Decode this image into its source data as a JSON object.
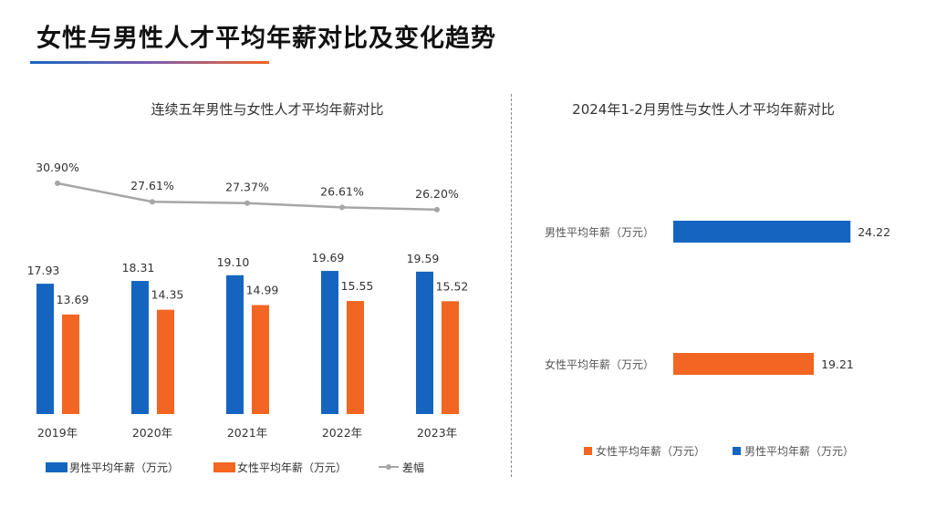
{
  "page": {
    "title": "女性与男性人才平均年薪对比及变化趋势"
  },
  "colors": {
    "male": "#1565c0",
    "female": "#f26522",
    "gap_line": "#a6a6a6",
    "text": "#333333"
  },
  "chart_data": [
    {
      "type": "bar",
      "title": "连续五年男性与女性人才平均年薪对比",
      "categories": [
        "2019年",
        "2020年",
        "2021年",
        "2022年",
        "2023年"
      ],
      "series": [
        {
          "name": "男性平均年薪（万元）",
          "values": [
            17.93,
            18.31,
            19.1,
            19.69,
            19.59
          ],
          "labels": [
            "17.93",
            "18.31",
            "19.10",
            "19.69",
            "19.59"
          ]
        },
        {
          "name": "女性平均年薪（万元）",
          "values": [
            13.69,
            14.35,
            14.99,
            15.55,
            15.52
          ],
          "labels": [
            "13.69",
            "14.35",
            "14.99",
            "15.55",
            "15.52"
          ]
        },
        {
          "name": "差幅",
          "type": "line",
          "values": [
            30.9,
            27.61,
            27.37,
            26.61,
            26.2
          ],
          "labels": [
            "30.90%",
            "27.61%",
            "27.37%",
            "26.61%",
            "26.20%"
          ]
        }
      ],
      "legend_position": "bottom",
      "grid": false
    },
    {
      "type": "bar",
      "orientation": "horizontal",
      "title": "2024年1-2月男性与女性人才平均年薪对比",
      "categories": [
        "男性平均年薪（万元）",
        "女性平均年薪（万元）"
      ],
      "values": [
        24.22,
        19.21
      ],
      "labels": [
        "24.22",
        "19.21"
      ],
      "legend": [
        "女性平均年薪（万元）",
        "男性平均年薪（万元）"
      ],
      "legend_position": "bottom",
      "grid": false
    }
  ]
}
